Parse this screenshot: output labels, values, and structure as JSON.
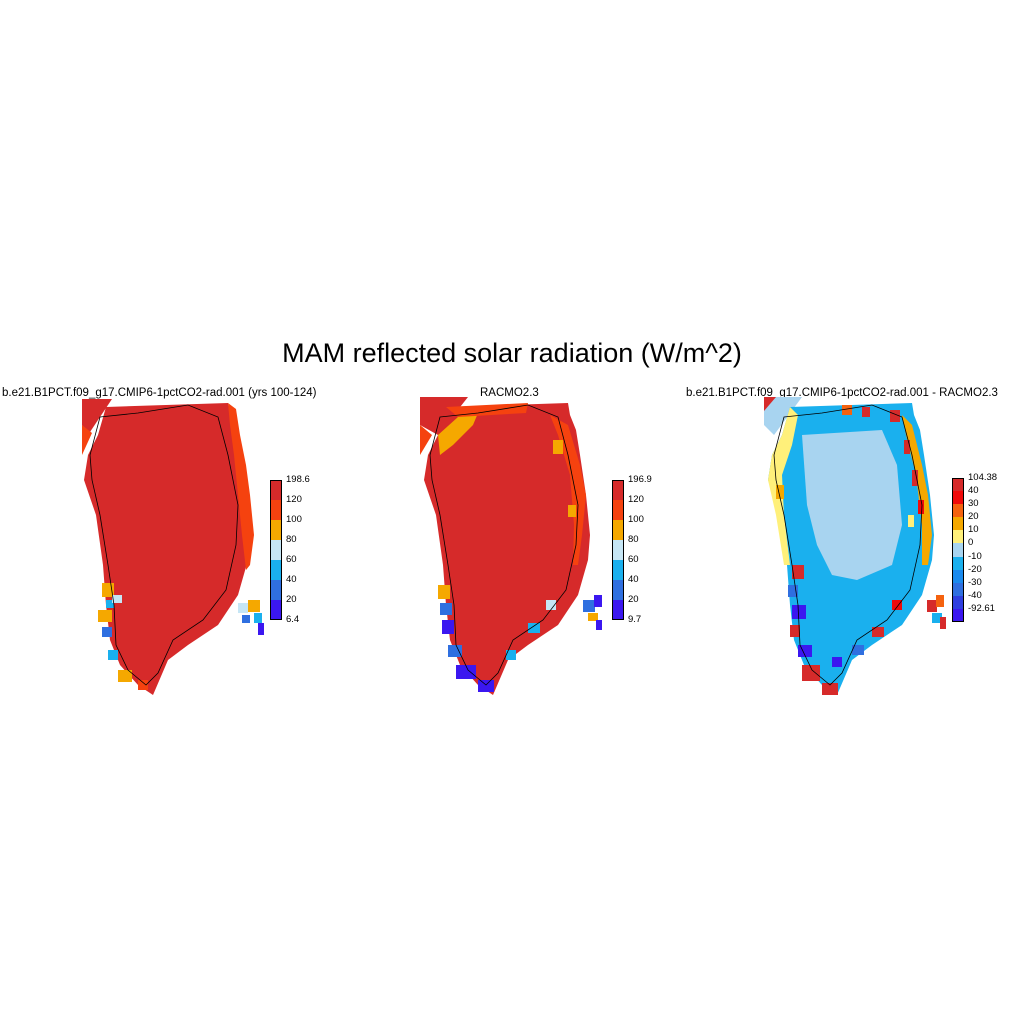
{
  "title": "MAM reflected solar radiation (W/m^2)",
  "panels": [
    {
      "title": "b.e21.B1PCT.f09_g17.CMIP6-1pctCO2-rad.001 (yrs 100-124)",
      "colorbar": {
        "labels": [
          "198.6",
          "120",
          "100",
          "80",
          "60",
          "40",
          "20",
          "6.4"
        ],
        "colors": [
          "#d62a2a",
          "#f5420f",
          "#f5a800",
          "#c6e6f5",
          "#1ab0ee",
          "#2f6fe0",
          "#3b17f0"
        ]
      }
    },
    {
      "title": "RACMO2.3",
      "colorbar": {
        "labels": [
          "196.9",
          "120",
          "100",
          "80",
          "60",
          "40",
          "20",
          "9.7"
        ],
        "colors": [
          "#d62a2a",
          "#f5420f",
          "#f5a800",
          "#c6e6f5",
          "#1ab0ee",
          "#2f6fe0",
          "#3b17f0"
        ]
      }
    },
    {
      "title": "b.e21.B1PCT.f09_g17.CMIP6-1pctCO2-rad.001 - RACMO2.3",
      "colorbar": {
        "labels": [
          "104.38",
          "40",
          "30",
          "20",
          "10",
          "0",
          "-10",
          "-20",
          "-30",
          "-40",
          "-92.61"
        ],
        "colors": [
          "#d62a2a",
          "#f00a0a",
          "#f5620f",
          "#f5a800",
          "#fff07a",
          "#a8d4f0",
          "#1ab0ee",
          "#1a8aee",
          "#2f6fe0",
          "#2f3fe0",
          "#3b17f0"
        ]
      }
    }
  ]
}
